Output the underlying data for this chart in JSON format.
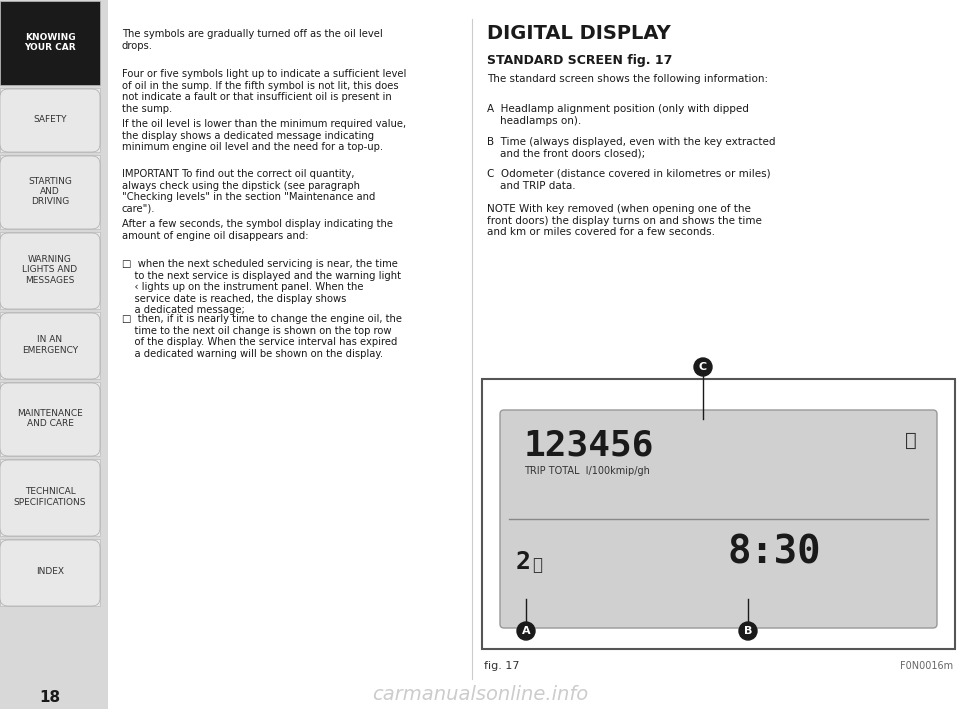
{
  "page_bg": "#ffffff",
  "sidebar_bg": "#f0f0f0",
  "sidebar_active_bg": "#1a1a1a",
  "sidebar_active_text": "#ffffff",
  "sidebar_text": "#333333",
  "sidebar_items": [
    {
      "label": "KNOWING\nYOUR CAR",
      "active": true
    },
    {
      "label": "SAFETY",
      "active": false
    },
    {
      "label": "STARTING\nAND\nDRIVING",
      "active": false
    },
    {
      "label": "WARNING\nLIGHTS AND\nMESSAGES",
      "active": false
    },
    {
      "label": "IN AN\nEMERGENCY",
      "active": false
    },
    {
      "label": "MAINTENANCE\nAND CARE",
      "active": false
    },
    {
      "label": "TECHNICAL\nSPECIFICATIONS",
      "active": false
    },
    {
      "label": "INDEX",
      "active": false
    }
  ],
  "page_number": "18",
  "left_col_text": [
    {
      "text": "The symbols are gradually turned off as the oil level\ndrops.",
      "bold": false,
      "indent": 0
    },
    {
      "text": "Four or five symbols light up to indicate a sufficient level\nof oil in the sump. If the fifth symbol is not lit, this does\nnot indicate a fault or that insufficient oil is present in\nthe sump.",
      "bold": false,
      "indent": 0
    },
    {
      "text": "If the oil level is lower than the minimum required value,\nthe display shows a dedicated message indicating\nminimum engine oil level and the need for a top-up.",
      "bold": false,
      "indent": 0
    },
    {
      "text": "IMPORTANT To find out the correct oil quantity,\nalways check using the dipstick (see paragraph\n\"Checking levels\" in the section \"Maintenance and\ncare\").",
      "bold": false,
      "indent": 0
    },
    {
      "text": "After a few seconds, the symbol display indicating the\namount of engine oil disappears and:",
      "bold": false,
      "indent": 0
    },
    {
      "text": "□  when the next scheduled servicing is near, the time\n    to the next service is displayed and the warning light\n    ‹ lights up on the instrument panel. When the\n    service date is reached, the display shows\n    a dedicated message;",
      "bold": false,
      "indent": 0
    },
    {
      "text": "□  then, if it is nearly time to change the engine oil, the\n    time to the next oil change is shown on the top row\n    of the display. When the service interval has expired\n    a dedicated warning will be shown on the display.",
      "bold": false,
      "indent": 0
    }
  ],
  "right_title": "DIGITAL DISPLAY",
  "right_subtitle": "STANDARD SCREEN fig. 17",
  "right_text": [
    "The standard screen shows the following information:",
    "A  Headlamp alignment position (only with dipped\n    headlamps on).",
    "B  Time (always displayed, even with the key extracted\n    and the front doors closed);",
    "C  Odometer (distance covered in kilometres or miles)\n    and TRIP data.",
    "NOTE With key removed (when opening one of the\nfront doors) the display turns on and shows the time\nand km or miles covered for a few seconds."
  ],
  "display_bg": "#e8e8e8",
  "display_border": "#333333",
  "display_odometer": "123456",
  "display_labels": "TRIP TOTAL  l/100kmip/gh",
  "display_time": "8:30",
  "display_headlamp": "2",
  "fig_label": "fig. 17",
  "fig_code": "F0N0016m",
  "watermark": "carmanualsonline.info"
}
